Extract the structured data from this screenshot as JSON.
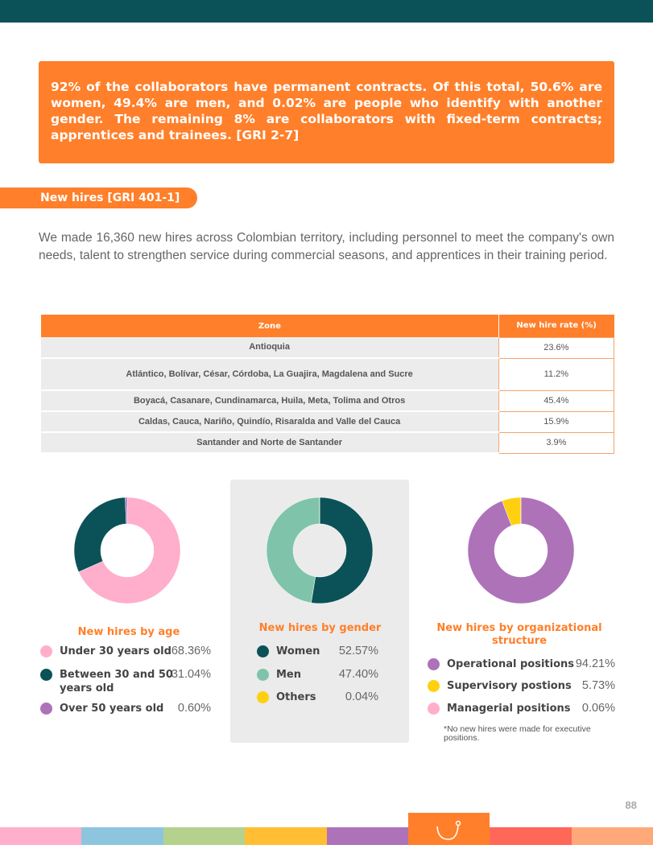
{
  "colors": {
    "teal": "#0b5258",
    "orange": "#ff7f2a",
    "pink": "#ffaecb",
    "mint": "#7fc4aa",
    "purple": "#ae72b9",
    "yellow": "#ffd00f"
  },
  "callout": "92% of the collaborators have permanent contracts. Of this total, 50.6% are women, 49.4% are men, and 0.02% are people who identify with another gender. The remaining 8% are collaborators with fixed-term contracts; apprentices and trainees. [GRI 2-7]",
  "section_title": "New hires [GRI 401-1]",
  "intro": "We made 16,360 new hires across Colombian territory, including personnel to meet the company's own needs, talent to strengthen service during commercial seasons, and apprentices in their training period.",
  "table": {
    "headers": [
      "Zone",
      "New hire rate (%)"
    ],
    "rows": [
      [
        "Antioquia",
        "23.6%"
      ],
      [
        "Atlántico, Bolívar, César, Córdoba, La Guajira, Magdalena and Sucre",
        "11.2%"
      ],
      [
        "Boyacá, Casanare, Cundinamarca, Huila, Meta, Tolima and Otros",
        "45.4%"
      ],
      [
        "Caldas, Cauca, Nariño, Quindío, Risaralda and Valle del Cauca",
        "15.9%"
      ],
      [
        "Santander and Norte de Santander",
        "3.9%"
      ]
    ]
  },
  "chart_data": [
    {
      "type": "pie",
      "title": "New hires by age",
      "categories": [
        "Under 30 years old",
        "Between 30 and 50 years old",
        "Over 50 years old"
      ],
      "values": [
        68.36,
        31.04,
        0.6
      ],
      "labels": [
        "68.36%",
        "31.04%",
        "0.60%"
      ],
      "colors": [
        "#ffaecb",
        "#0b5258",
        "#ae72b9"
      ]
    },
    {
      "type": "pie",
      "title": "New hires by gender",
      "categories": [
        "Women",
        "Men",
        "Others"
      ],
      "values": [
        52.57,
        47.4,
        0.04
      ],
      "labels": [
        "52.57%",
        "47.40%",
        "0.04%"
      ],
      "colors": [
        "#0b5258",
        "#7fc4aa",
        "#ffd00f"
      ]
    },
    {
      "type": "pie",
      "title": "New hires by organizational structure",
      "categories": [
        "Operational positions",
        "Supervisory postions",
        "Managerial positions"
      ],
      "values": [
        94.21,
        5.73,
        0.06
      ],
      "labels": [
        "94.21%",
        "5.73%",
        "0.06%"
      ],
      "colors": [
        "#ae72b9",
        "#ffd00f",
        "#ffaecb"
      ]
    }
  ],
  "note": "*No new hires were made for executive positions.",
  "page_number": "88",
  "footer_stripes": [
    "#ffaecb",
    "#8ec5de",
    "#b4d18e",
    "#ffbe33",
    "#ae72b9",
    "#ff7f2a",
    "#ff6759",
    "#ffa97a"
  ]
}
